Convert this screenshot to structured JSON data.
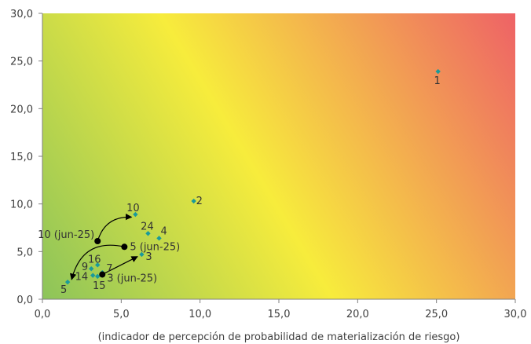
{
  "chart_data": {
    "type": "scatter",
    "title": "",
    "xlabel": "(indicador de percepción de probabilidad de materialización de riesgo)",
    "ylabel": "",
    "xlim": [
      0,
      30
    ],
    "ylim": [
      0,
      30
    ],
    "x_ticks": [
      "0,0",
      "5,0",
      "10,0",
      "15,0",
      "20,0",
      "25,0",
      "30,0"
    ],
    "y_ticks": [
      "0,0",
      "5,0",
      "10,0",
      "15,0",
      "20,0",
      "25,0",
      "30,0"
    ],
    "grid": false,
    "legend": "none",
    "background": "heatmap gradient green (low) to yellow to red (high)",
    "colors": {
      "point": "#1a9a9a",
      "reference_point": "#000000",
      "low": "#8cc45a",
      "mid": "#f7ec3c",
      "high": "#ee6266"
    },
    "points": [
      {
        "label": "1",
        "x": 25.1,
        "y": 23.9
      },
      {
        "label": "2",
        "x": 9.6,
        "y": 10.3
      },
      {
        "label": "10",
        "x": 5.9,
        "y": 8.9
      },
      {
        "label": "24",
        "x": 6.7,
        "y": 6.9
      },
      {
        "label": "4",
        "x": 7.4,
        "y": 6.4
      },
      {
        "label": "3",
        "x": 6.3,
        "y": 4.7
      },
      {
        "label": "16",
        "x": 3.5,
        "y": 3.6
      },
      {
        "label": "9",
        "x": 3.1,
        "y": 3.2
      },
      {
        "label": "7",
        "x": 3.8,
        "y": 2.8
      },
      {
        "label": "14",
        "x": 3.2,
        "y": 2.5
      },
      {
        "label": "15",
        "x": 3.5,
        "y": 2.4
      },
      {
        "label": "5",
        "x": 1.6,
        "y": 1.8
      }
    ],
    "reference_points": [
      {
        "label": "10 (jun-25)",
        "x": 3.5,
        "y": 6.1
      },
      {
        "label": "5 (jun-25)",
        "x": 5.2,
        "y": 5.5
      },
      {
        "label": "3 (jun-25)",
        "x": 3.8,
        "y": 2.6
      }
    ],
    "transitions": [
      {
        "from": "10 (jun-25)",
        "to": "10"
      },
      {
        "from": "5 (jun-25)",
        "to": "5"
      },
      {
        "from": "3 (jun-25)",
        "to": "3"
      }
    ]
  }
}
